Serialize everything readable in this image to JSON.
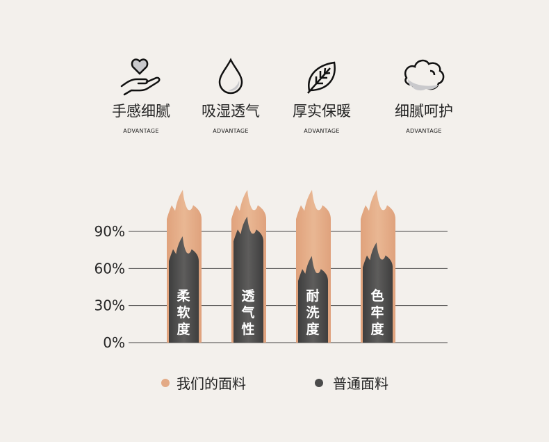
{
  "features": [
    {
      "icon": "hand-heart-icon",
      "title": "手感细腻",
      "subtitle": "ADVANTAGE"
    },
    {
      "icon": "water-drop-icon",
      "title": "吸湿透气",
      "subtitle": "ADVANTAGE"
    },
    {
      "icon": "leaf-icon",
      "title": "厚实保暖",
      "subtitle": "ADVANTAGE"
    },
    {
      "icon": "cotton-icon",
      "title": "细腻呵护",
      "subtitle": "ADVANTAGE"
    }
  ],
  "colors": {
    "background": "#f3f0ec",
    "ours": "#e3aa86",
    "ordinary": "#4b4b4b",
    "grid": "#444444"
  },
  "chart_data": {
    "type": "bar",
    "categories": [
      "柔软度",
      "透气性",
      "耐洗度",
      "色牢度"
    ],
    "series": [
      {
        "name": "我们的面料",
        "values": [
          100,
          100,
          100,
          100
        ]
      },
      {
        "name": "普通面料",
        "values": [
          66,
          82,
          50,
          61
        ]
      }
    ],
    "ylim": [
      0,
      100
    ],
    "yticks": [
      "0%",
      "30%",
      "60%",
      "90%"
    ],
    "ytick_values": [
      0,
      30,
      60,
      90
    ],
    "grid": true,
    "legend": "bottom"
  }
}
